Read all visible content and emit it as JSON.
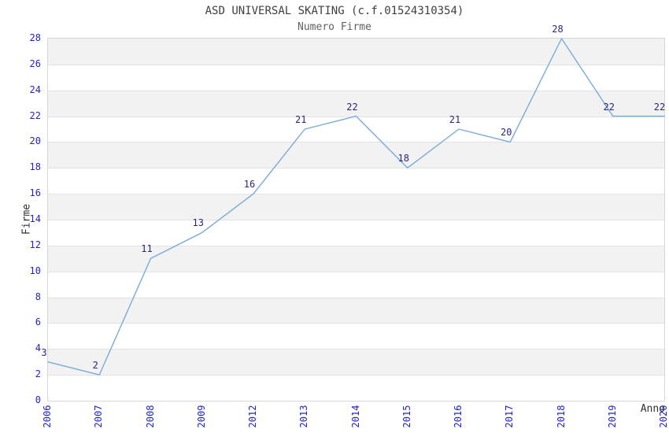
{
  "chart_data": {
    "type": "line",
    "title": "ASD UNIVERSAL SKATING (c.f.01524310354)",
    "subtitle": "Numero Firme",
    "xlabel": "Anno",
    "ylabel": "Firme",
    "categories": [
      "2006",
      "2007",
      "2008",
      "2009",
      "2012",
      "2013",
      "2014",
      "2015",
      "2016",
      "2017",
      "2018",
      "2019",
      "2020"
    ],
    "values": [
      3,
      2,
      11,
      13,
      16,
      21,
      22,
      18,
      21,
      20,
      28,
      22,
      22
    ],
    "ylim": [
      0,
      28
    ],
    "y_tick_step": 2,
    "y_ticks": [
      0,
      2,
      4,
      6,
      8,
      10,
      12,
      14,
      16,
      18,
      20,
      22,
      24,
      26,
      28
    ],
    "grid": "horizontal-alternating-bands",
    "legend": "none",
    "markers": "none",
    "data_labels_shown": true,
    "colors": {
      "line": "#79aadc",
      "data_label": "#26267f",
      "tick_label": "#2222cc",
      "title": "#404040",
      "subtitle": "#606060",
      "axis_label": "#303030",
      "band_gray": "#f2f2f2",
      "band_white": "#ffffff",
      "plot_border": "#d6d6d6",
      "gridline": "#e3e3e3",
      "background": "#ffffff"
    }
  }
}
